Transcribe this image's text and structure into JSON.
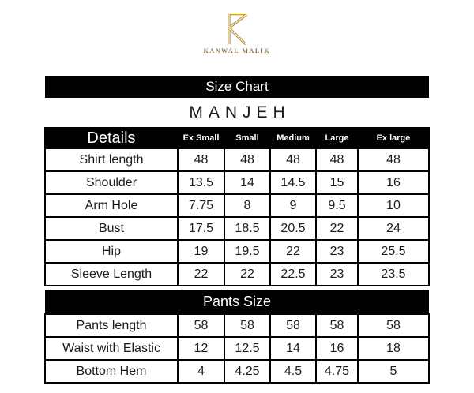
{
  "brand": {
    "name": "KANWAL MALIK",
    "monogram": "K",
    "gold_color": "#b2903c"
  },
  "header": {
    "bar_label": "Size Chart",
    "product_name": "MANJEH"
  },
  "chart_data": {
    "type": "table",
    "title": "Size Chart",
    "subtitle": "MANJEH",
    "columns": [
      "Details",
      "Ex Small",
      "Small",
      "Medium",
      "Large",
      "Ex large"
    ],
    "shirt_rows": [
      {
        "label": "Shirt length",
        "values": [
          "48",
          "48",
          "48",
          "48",
          "48"
        ]
      },
      {
        "label": "Shoulder",
        "values": [
          "13.5",
          "14",
          "14.5",
          "15",
          "16"
        ]
      },
      {
        "label": "Arm Hole",
        "values": [
          "7.75",
          "8",
          "9",
          "9.5",
          "10"
        ]
      },
      {
        "label": "Bust",
        "values": [
          "17.5",
          "18.5",
          "20.5",
          "22",
          "24"
        ]
      },
      {
        "label": "Hip",
        "values": [
          "19",
          "19.5",
          "22",
          "23",
          "25.5"
        ]
      },
      {
        "label": "Sleeve Length",
        "values": [
          "22",
          "22",
          "22.5",
          "23",
          "23.5"
        ]
      }
    ],
    "pants_section_label": "Pants Size",
    "pants_rows": [
      {
        "label": "Pants length",
        "values": [
          "58",
          "58",
          "58",
          "58",
          "58"
        ]
      },
      {
        "label": "Waist with Elastic",
        "values": [
          "12",
          "12.5",
          "14",
          "16",
          "18"
        ]
      },
      {
        "label": "Bottom Hem",
        "values": [
          "4",
          "4.25",
          "4.5",
          "4.75",
          "5"
        ]
      }
    ]
  },
  "colors": {
    "bar_background": "#000000",
    "page_background": "#ffffff",
    "text": "#1b1b1b",
    "accent_gold": "#b2903c"
  }
}
